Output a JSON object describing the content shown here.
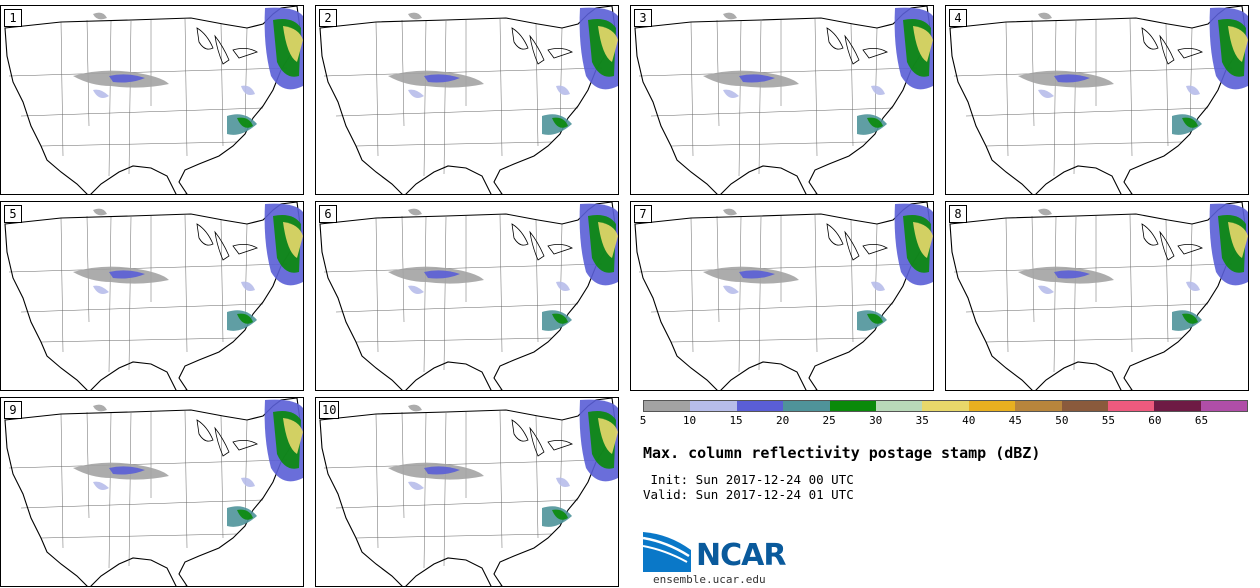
{
  "panels": [
    {
      "label": "1"
    },
    {
      "label": "2"
    },
    {
      "label": "3"
    },
    {
      "label": "4"
    },
    {
      "label": "5"
    },
    {
      "label": "6"
    },
    {
      "label": "7"
    },
    {
      "label": "8"
    },
    {
      "label": "9"
    },
    {
      "label": "10"
    }
  ],
  "legend": {
    "colors": [
      "#a3a3a3",
      "#b7bdea",
      "#5a5ed6",
      "#4f939a",
      "#0a8a0a",
      "#b9d9b9",
      "#e8d86a",
      "#e8b020",
      "#b8853c",
      "#8a5a3c",
      "#ee5a7e",
      "#6e1a44",
      "#b04ea8"
    ],
    "ticks": [
      "5",
      "10",
      "15",
      "20",
      "25",
      "30",
      "35",
      "40",
      "45",
      "50",
      "55",
      "60",
      "65"
    ]
  },
  "title": "Max. column reflectivity postage stamp (dBZ)",
  "init": " Init: Sun 2017-12-24 00 UTC",
  "valid": "Valid: Sun 2017-12-24 01 UTC",
  "logo": {
    "word": "NCAR",
    "url": "ensemble.ucar.edu"
  }
}
